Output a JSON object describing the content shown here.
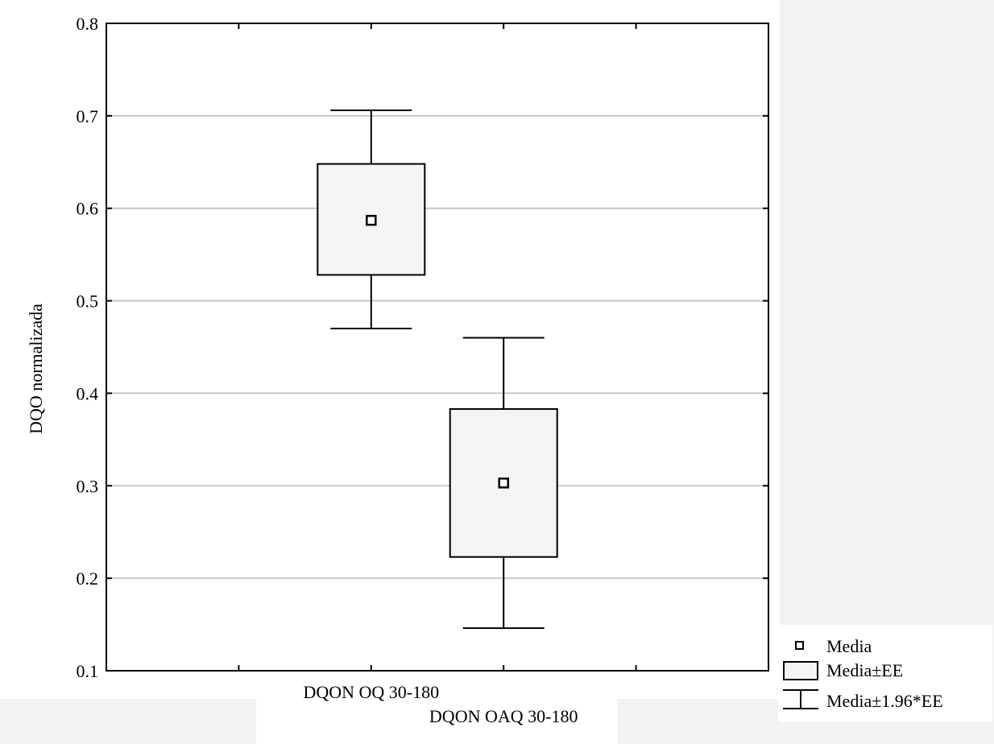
{
  "chart_data": {
    "type": "box",
    "title": "",
    "ylabel": "DQO normalizada",
    "xlabel": "",
    "ylim": [
      0.1,
      0.8
    ],
    "yticks": [
      0.1,
      0.2,
      0.3,
      0.4,
      0.5,
      0.6,
      0.7,
      0.8
    ],
    "grid": true,
    "categories": [
      "DQON OQ 30-180",
      "DQON OAQ 30-180"
    ],
    "series": [
      {
        "category": "DQON OQ 30-180",
        "mean": 0.587,
        "se_low": 0.528,
        "se_high": 0.648,
        "ci_low": 0.47,
        "ci_high": 0.706
      },
      {
        "category": "DQON OAQ 30-180",
        "mean": 0.303,
        "se_low": 0.223,
        "se_high": 0.383,
        "ci_low": 0.146,
        "ci_high": 0.46
      }
    ],
    "legend": {
      "position": "bottom-right",
      "items": [
        {
          "symbol": "mean-square",
          "label": "Media"
        },
        {
          "symbol": "box",
          "label": "Media±EE"
        },
        {
          "symbol": "whisker",
          "label": "Media±1.96*EE"
        }
      ]
    }
  }
}
